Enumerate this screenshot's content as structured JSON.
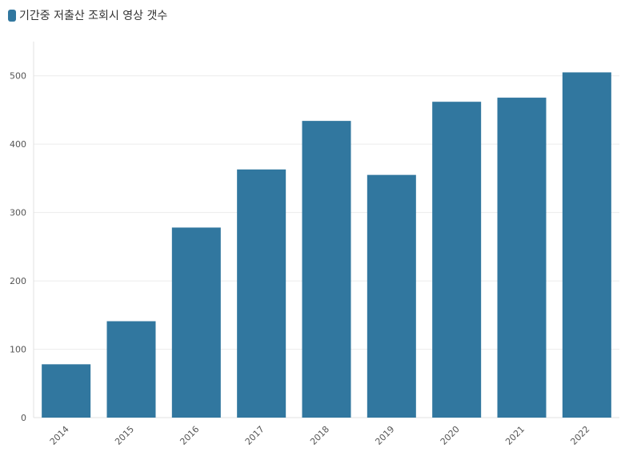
{
  "chart_data": {
    "type": "bar",
    "title": "",
    "xlabel": "",
    "ylabel": "",
    "categories": [
      "2014",
      "2015",
      "2016",
      "2017",
      "2018",
      "2019",
      "2020",
      "2021",
      "2022"
    ],
    "series": [
      {
        "name": "기간중 저출산 조회시 영상 갯수",
        "color": "#31779f",
        "values": [
          78,
          141,
          278,
          363,
          434,
          355,
          462,
          468,
          505
        ]
      }
    ],
    "yticks": [
      0,
      100,
      200,
      300,
      400,
      500
    ],
    "ylim": [
      0,
      550
    ],
    "grid": true,
    "legend_position": "top-left"
  }
}
